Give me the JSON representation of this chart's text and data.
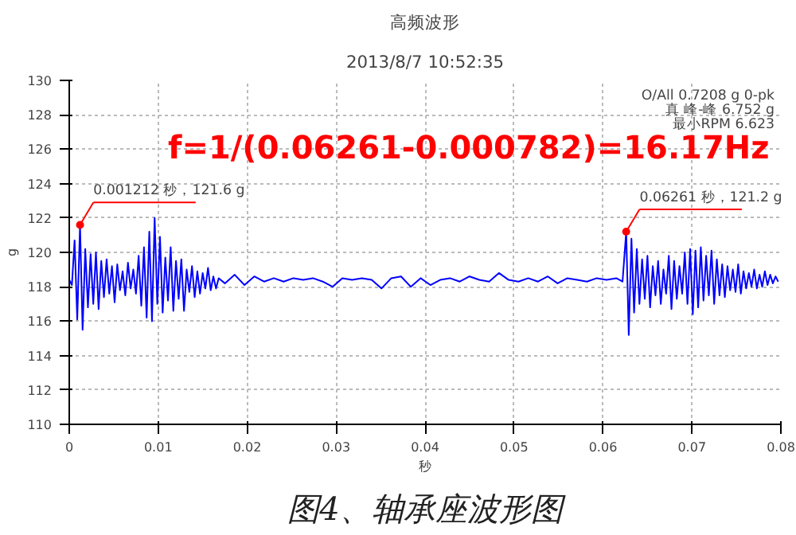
{
  "chart_data": {
    "type": "line",
    "title": "高频波形",
    "subtitle": "2013/8/7 10:52:35",
    "xlabel": "秒",
    "ylabel": "g",
    "xlim": [
      0,
      0.08
    ],
    "xticks": [
      0,
      0.01,
      0.02,
      0.03,
      0.04,
      0.05,
      0.06,
      0.07,
      0.08
    ],
    "ylim": [
      110,
      130
    ],
    "yticks": [
      110,
      112,
      114,
      116,
      118,
      120,
      122,
      124,
      126,
      128,
      130
    ],
    "grid": true,
    "marker": "none",
    "line_style": "solid",
    "series": [
      {
        "color": "#0000ff",
        "x": [
          0,
          0.0003,
          0.0006,
          0.0009,
          0.001212,
          0.0015,
          0.0018,
          0.0021,
          0.0024,
          0.0027,
          0.003,
          0.0033,
          0.0036,
          0.0039,
          0.0042,
          0.0045,
          0.0048,
          0.0051,
          0.0054,
          0.0057,
          0.006,
          0.0063,
          0.0066,
          0.0069,
          0.0072,
          0.0075,
          0.0078,
          0.0081,
          0.0084,
          0.0087,
          0.009,
          0.0093,
          0.0096,
          0.0099,
          0.0102,
          0.0105,
          0.0108,
          0.0111,
          0.0114,
          0.0117,
          0.012,
          0.0123,
          0.0126,
          0.0129,
          0.0132,
          0.0135,
          0.0138,
          0.0141,
          0.0144,
          0.0147,
          0.015,
          0.0153,
          0.0156,
          0.0159,
          0.0162,
          0.0165,
          0.0168,
          0.0175,
          0.0186,
          0.0197,
          0.0208,
          0.0219,
          0.023,
          0.0241,
          0.0252,
          0.0263,
          0.0274,
          0.0285,
          0.0296,
          0.0307,
          0.0318,
          0.0329,
          0.034,
          0.0351,
          0.0362,
          0.0373,
          0.0384,
          0.0395,
          0.0406,
          0.0417,
          0.0428,
          0.0439,
          0.045,
          0.0461,
          0.0472,
          0.0483,
          0.0494,
          0.0505,
          0.0516,
          0.0527,
          0.0538,
          0.0549,
          0.056,
          0.0571,
          0.0582,
          0.0593,
          0.0604,
          0.0615,
          0.0622,
          0.06261,
          0.0629,
          0.0632,
          0.0635,
          0.0638,
          0.0641,
          0.0644,
          0.0647,
          0.065,
          0.0653,
          0.0656,
          0.0659,
          0.0662,
          0.0665,
          0.0668,
          0.0671,
          0.0674,
          0.0677,
          0.068,
          0.0683,
          0.0686,
          0.0689,
          0.0692,
          0.0695,
          0.0698,
          0.0701,
          0.0704,
          0.0707,
          0.071,
          0.0713,
          0.0716,
          0.0719,
          0.0722,
          0.0725,
          0.0728,
          0.0731,
          0.0734,
          0.0737,
          0.074,
          0.0743,
          0.0746,
          0.0749,
          0.0752,
          0.0755,
          0.0758,
          0.0761,
          0.0764,
          0.0767,
          0.077,
          0.0773,
          0.0776,
          0.0779,
          0.0782,
          0.0785,
          0.0788,
          0.0791,
          0.0794,
          0.0797
        ],
        "values": [
          118.4,
          118.1,
          120.7,
          116.1,
          121.6,
          115.5,
          120.2,
          116.8,
          119.9,
          117.0,
          120.0,
          116.7,
          119.5,
          117.4,
          119.6,
          117.6,
          119.2,
          117.1,
          119.3,
          117.8,
          118.9,
          117.5,
          119.4,
          117.9,
          119.0,
          117.6,
          119.8,
          116.9,
          120.3,
          116.2,
          121.2,
          116.0,
          122.0,
          117.0,
          120.9,
          116.5,
          119.7,
          117.2,
          120.3,
          116.6,
          119.5,
          117.3,
          119.6,
          116.6,
          119.0,
          117.7,
          119.2,
          117.4,
          118.9,
          117.6,
          118.8,
          117.9,
          119.1,
          117.8,
          118.6,
          117.9,
          118.5,
          118.2,
          118.7,
          118.1,
          118.6,
          118.3,
          118.5,
          118.3,
          118.5,
          118.4,
          118.5,
          118.3,
          118.0,
          118.5,
          118.4,
          118.5,
          118.4,
          117.9,
          118.5,
          118.6,
          118.0,
          118.5,
          118.1,
          118.4,
          118.5,
          118.3,
          118.6,
          118.4,
          118.3,
          118.8,
          118.4,
          118.3,
          118.5,
          118.3,
          118.6,
          118.2,
          118.5,
          118.4,
          118.3,
          118.5,
          118.4,
          118.5,
          118.3,
          121.2,
          115.2,
          120.8,
          116.5,
          120.2,
          117.0,
          119.6,
          117.3,
          119.8,
          116.8,
          119.2,
          117.5,
          119.5,
          117.0,
          119.0,
          117.6,
          119.8,
          116.7,
          119.5,
          117.3,
          119.2,
          117.6,
          120.0,
          117.0,
          120.2,
          116.4,
          120.1,
          116.8,
          120.3,
          117.2,
          119.8,
          117.5,
          120.1,
          117.0,
          119.6,
          117.5,
          119.3,
          117.4,
          119.2,
          117.8,
          119.0,
          117.7,
          119.3,
          117.6,
          118.9,
          117.9,
          118.8,
          118.0,
          119.0,
          117.9,
          118.7,
          118.0,
          118.9,
          118.1,
          118.7,
          118.2,
          118.6,
          118.3
        ]
      }
    ],
    "annotations": [
      "O/All 0.7208 g 0-pk",
      "真 峰-峰 6.752 g",
      "最小RPM 6.623",
      "f=1/(0.06261-0.000782)=16.17Hz",
      {
        "text": "0.001212 秒，121.6 g",
        "x": 0.001212,
        "y": 121.6
      },
      {
        "text": "0.06261 秒，121.2 g",
        "x": 0.06261,
        "y": 121.2
      },
      "图4、轴承座波形图"
    ]
  }
}
